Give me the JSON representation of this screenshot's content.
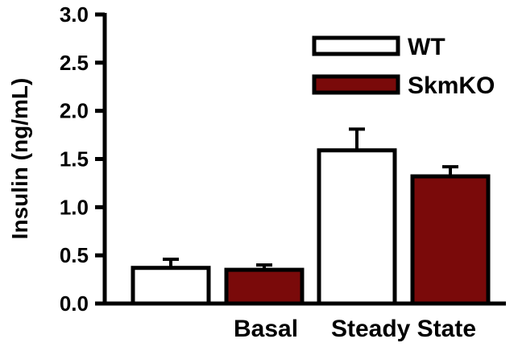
{
  "chart_data": {
    "type": "bar",
    "title": "",
    "xlabel": "",
    "ylabel": "Insulin (ng/mL)",
    "ylim": [
      0,
      3.0
    ],
    "yticks": [
      "0.0",
      "0.5",
      "1.0",
      "1.5",
      "2.0",
      "2.5",
      "3.0"
    ],
    "categories": [
      "Basal",
      "Steady State"
    ],
    "series": [
      {
        "name": "WT",
        "values": [
          0.37,
          1.59
        ],
        "errors": [
          0.09,
          0.22
        ],
        "color": "#ffffff"
      },
      {
        "name": "SkmKO",
        "values": [
          0.35,
          1.32
        ],
        "errors": [
          0.05,
          0.1
        ],
        "color": "#7a0a0a"
      }
    ],
    "legend": "top-right",
    "grid": false
  }
}
